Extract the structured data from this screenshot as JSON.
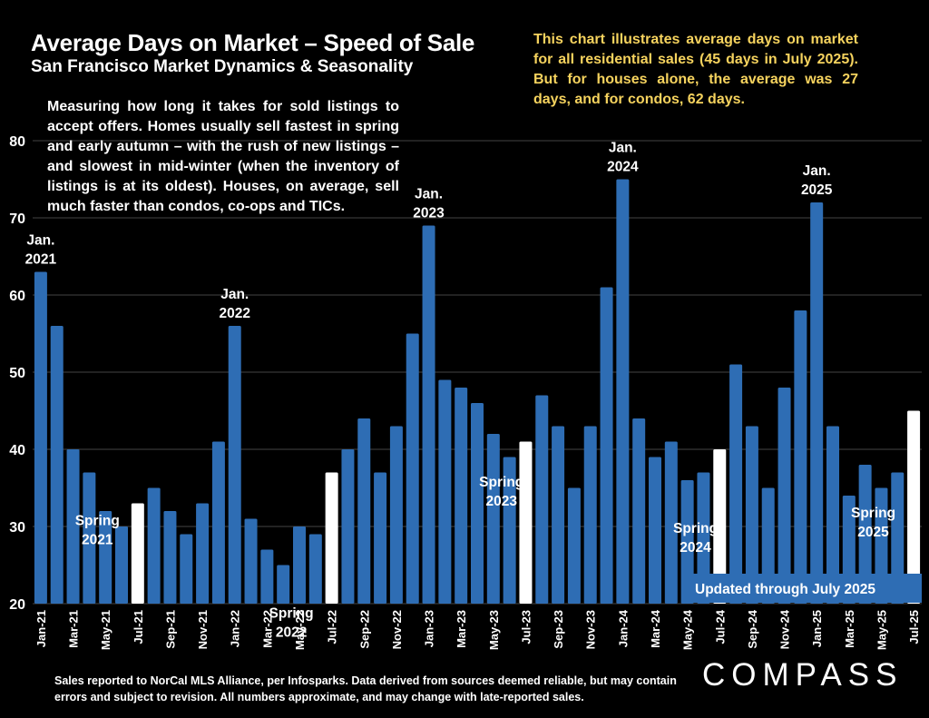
{
  "title": "Average Days on Market – Speed of Sale",
  "subtitle": "San Francisco Market Dynamics & Seasonality",
  "note": "This chart illustrates average days on market for all residential sales (45 days in July 2025). But for houses alone, the average was 27 days, and for condos, 62 days.",
  "description": "Measuring how long it takes for sold listings to accept offers. Homes usually sell fastest in spring and early autumn – with the rush of new listings – and slowest in mid-winter (when the inventory of listings is at its oldest). Houses, on average, sell much faster than condos, co-ops and TICs.",
  "footer": "Sales reported to NorCal MLS Alliance, per Infosparks. Data derived from sources deemed reliable, but may contain errors and subject to revision. All numbers approximate, and may change with late-reported sales.",
  "logo": "COMPASS",
  "colors": {
    "bar": "#2e6db4",
    "highlight": "#ffffff",
    "note": "#f6d35e",
    "background": "#000000",
    "grid": "#444444"
  },
  "chart_data": {
    "type": "bar",
    "ylim": [
      20,
      80
    ],
    "yticks": [
      20,
      30,
      40,
      50,
      60,
      70,
      80
    ],
    "categories": [
      "Jan-21",
      "Feb-21",
      "Mar-21",
      "Apr-21",
      "May-21",
      "Jun-21",
      "Jul-21",
      "Aug-21",
      "Sep-21",
      "Oct-21",
      "Nov-21",
      "Dec-21",
      "Jan-22",
      "Feb-22",
      "Mar-22",
      "Apr-22",
      "May-22",
      "Jun-22",
      "Jul-22",
      "Aug-22",
      "Sep-22",
      "Oct-22",
      "Nov-22",
      "Dec-22",
      "Jan-23",
      "Feb-23",
      "Mar-23",
      "Apr-23",
      "May-23",
      "Jun-23",
      "Jul-23",
      "Aug-23",
      "Sep-23",
      "Oct-23",
      "Nov-23",
      "Dec-23",
      "Jan-24",
      "Feb-24",
      "Mar-24",
      "Apr-24",
      "May-24",
      "Jun-24",
      "Jul-24",
      "Aug-24",
      "Sep-24",
      "Oct-24",
      "Nov-24",
      "Dec-24",
      "Jan-25",
      "Feb-25",
      "Mar-25",
      "Apr-25",
      "May-25",
      "Jun-25",
      "Jul-25"
    ],
    "tick_labels": [
      "Jan-21",
      "Mar-21",
      "May-21",
      "Jul-21",
      "Sep-21",
      "Nov-21",
      "Jan-22",
      "Mar-22",
      "May-22",
      "Jul-22",
      "Sep-22",
      "Nov-22",
      "Jan-23",
      "Mar-23",
      "May-23",
      "Jul-23",
      "Sep-23",
      "Nov-23",
      "Jan-24",
      "Mar-24",
      "May-24",
      "Jul-24",
      "Sep-24",
      "Nov-24",
      "Jan-25",
      "Mar-25",
      "May-25",
      "Jul-25"
    ],
    "values": [
      63,
      56,
      40,
      37,
      32,
      30,
      33,
      35,
      32,
      29,
      33,
      41,
      56,
      31,
      27,
      25,
      30,
      29,
      37,
      40,
      44,
      37,
      43,
      55,
      69,
      49,
      48,
      46,
      42,
      39,
      41,
      47,
      43,
      35,
      43,
      61,
      75,
      44,
      39,
      41,
      36,
      37,
      40,
      51,
      43,
      35,
      48,
      58,
      72,
      43,
      34,
      38,
      35,
      37,
      45
    ],
    "highlight_categories": [
      "Jul-21",
      "Jul-22",
      "Jul-23",
      "Jul-24",
      "Jul-25"
    ],
    "annotations": [
      {
        "category": "Jan-21",
        "text": [
          "Jan.",
          "2021"
        ],
        "position": "above"
      },
      {
        "category": "Jan-22",
        "text": [
          "Jan.",
          "2022"
        ],
        "position": "above"
      },
      {
        "category": "Jan-23",
        "text": [
          "Jan.",
          "2023"
        ],
        "position": "above"
      },
      {
        "category": "Jan-24",
        "text": [
          "Jan.",
          "2024"
        ],
        "position": "above"
      },
      {
        "category": "Jan-25",
        "text": [
          "Jan.",
          "2025"
        ],
        "position": "above"
      },
      {
        "category": "Apr-21",
        "text": [
          "Spring",
          "2021"
        ],
        "position": "on-bar"
      },
      {
        "category": "Apr-22",
        "text": [
          "Spring",
          "2022"
        ],
        "position": "on-bar"
      },
      {
        "category": "May-23",
        "text": [
          "Spring",
          "2023"
        ],
        "position": "on-bar"
      },
      {
        "category": "May-24",
        "text": [
          "Spring",
          "2024"
        ],
        "position": "on-bar"
      },
      {
        "category": "Apr-25",
        "text": [
          "Spring",
          "2025"
        ],
        "position": "on-bar"
      }
    ],
    "badge": "Updated through July 2025"
  }
}
